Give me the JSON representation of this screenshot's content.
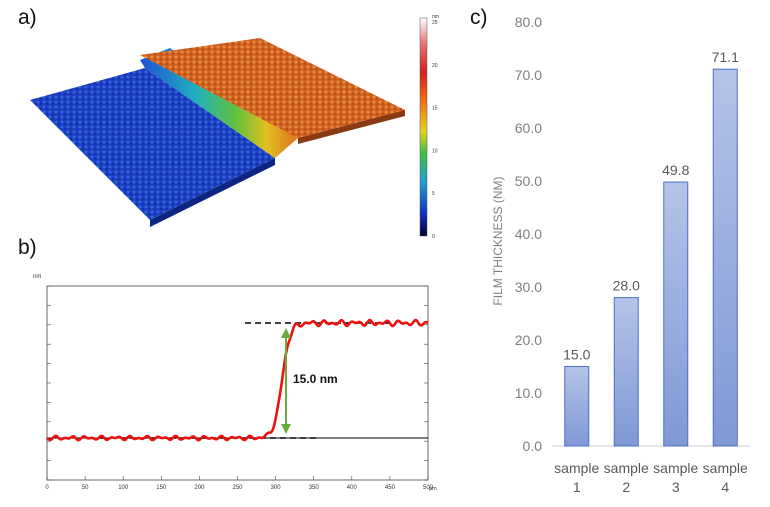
{
  "panel_labels": {
    "a": "a)",
    "b": "b)",
    "c": "c)"
  },
  "colors": {
    "bar_fill_top": "#b4c3e8",
    "bar_fill_bottom": "#7f99d6",
    "bar_stroke": "#4a6fc4",
    "profile_line": "#ee1111",
    "arrow": "#6aaa3a",
    "axis_text": "#7f7f7f"
  },
  "panel_a": {
    "colorbar": {
      "unit": "nm",
      "ticks": [
        "25",
        "20",
        "15",
        "10",
        "5",
        "0"
      ]
    }
  },
  "panel_b": {
    "y_unit": "nm",
    "x_unit": "µm",
    "step_label": "15.0 nm",
    "x_ticks": [
      "0",
      "50",
      "100",
      "150",
      "200",
      "250",
      "300",
      "350",
      "400",
      "450",
      "500"
    ]
  },
  "chart_data": {
    "type": "bar",
    "categories": [
      "sample 1",
      "sample 2",
      "sample 3",
      "sample 4"
    ],
    "category_lines": [
      [
        "sample",
        "1"
      ],
      [
        "sample",
        "2"
      ],
      [
        "sample",
        "3"
      ],
      [
        "sample",
        "4"
      ]
    ],
    "values": [
      15.0,
      28.0,
      49.8,
      71.1
    ],
    "value_labels": [
      "15.0",
      "28.0",
      "49.8",
      "71.1"
    ],
    "ylabel": "FILM THICKNESS (NM)",
    "ylim": [
      0,
      80
    ],
    "yticks": [
      "0.0",
      "10.0",
      "20.0",
      "30.0",
      "40.0",
      "50.0",
      "60.0",
      "70.0",
      "80.0"
    ],
    "grid": false,
    "legend": "none"
  }
}
